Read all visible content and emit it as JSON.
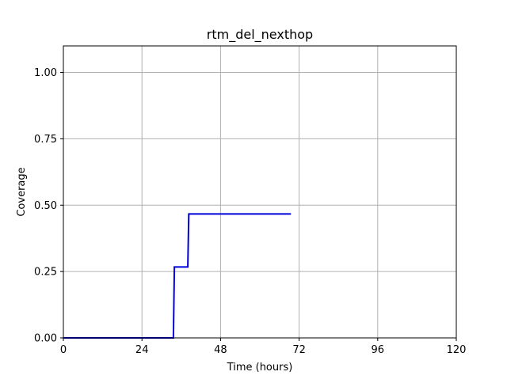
{
  "chart_data": {
    "type": "line",
    "title": "rtm_del_nexthop",
    "xlabel": "Time (hours)",
    "ylabel": "Coverage",
    "xlim": [
      0,
      120
    ],
    "ylim": [
      0,
      1.1
    ],
    "x_ticks": [
      0,
      24,
      48,
      72,
      96,
      120
    ],
    "y_ticks": [
      0.0,
      0.25,
      0.5,
      0.75,
      1.0
    ],
    "x_tick_labels": [
      "0",
      "24",
      "48",
      "72",
      "96",
      "120"
    ],
    "y_tick_labels": [
      "0.00",
      "0.25",
      "0.50",
      "0.75",
      "1.00"
    ],
    "grid": true,
    "legend": false,
    "colors": {
      "series": "#0000dd",
      "grid": "#b0b0b0",
      "axes": "#000000"
    },
    "series": [
      {
        "x": [
          0,
          33.6,
          33.9,
          38.0,
          38.3,
          69.5
        ],
        "y": [
          0.0,
          0.0,
          0.267,
          0.267,
          0.467,
          0.467
        ]
      }
    ]
  }
}
